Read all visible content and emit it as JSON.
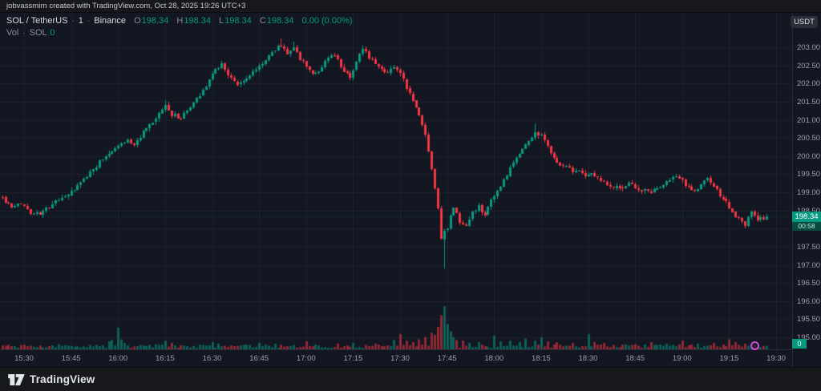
{
  "attribution": "jobvassmirn created with TradingView.com, Oct 28, 2025 19:26 UTC+3",
  "header": {
    "symbol": "SOL / TetherUS",
    "separator": "·",
    "interval": "1",
    "exchange": "Binance",
    "ohlc": {
      "o_label": "O",
      "o": "198.34",
      "h_label": "H",
      "h": "198.34",
      "l_label": "L",
      "l": "198.34",
      "c_label": "C",
      "c": "198.34",
      "change": "0.00 (0.00%)"
    },
    "volume_label": "Vol",
    "volume_symbol": "SOL",
    "volume_value": "0"
  },
  "axis_button": "USDT",
  "price_tag": {
    "price": "198.34",
    "countdown": "00:58"
  },
  "volume_tag": "0",
  "footer": {
    "logo_text": "TradingView"
  },
  "colors": {
    "up": "#089981",
    "down": "#f23645",
    "volume_up": "rgba(8,153,129,0.55)",
    "volume_down": "rgba(242,54,69,0.55)",
    "grid": "rgba(42,46,57,0.55)",
    "background": "#131722",
    "axis_text": "#9aa0aa",
    "tag_background": "#089981",
    "marker": "#c94fd8"
  },
  "chart_data": {
    "type": "candlestick",
    "symbol": "SOL/USDT",
    "exchange": "Binance",
    "interval_minutes": 1,
    "visible_range": [
      "15:23",
      "19:27"
    ],
    "x_ticks": [
      "15:30",
      "15:45",
      "16:00",
      "16:15",
      "16:30",
      "16:45",
      "17:00",
      "17:15",
      "17:30",
      "17:45",
      "18:00",
      "18:15",
      "18:30",
      "18:45",
      "19:00",
      "19:15",
      "19:30"
    ],
    "y_ticks": [
      203.0,
      202.5,
      202.0,
      201.5,
      201.0,
      200.5,
      200.0,
      199.5,
      199.0,
      198.5,
      198.0,
      197.5,
      197.0,
      196.5,
      196.0,
      195.5,
      195.0
    ],
    "ylim": [
      194.67,
      203.95
    ],
    "grid": true,
    "legend_position": "top-left",
    "last_price": 198.34,
    "session_high": 203.25,
    "crash_low": 196.9,
    "price_path": [
      [
        -7,
        198.85
      ],
      [
        -4,
        198.55
      ],
      [
        -1,
        198.7
      ],
      [
        2,
        198.45
      ],
      [
        5,
        198.4
      ],
      [
        8,
        198.6
      ],
      [
        12,
        198.85
      ],
      [
        15,
        199.0
      ],
      [
        18,
        199.25
      ],
      [
        21,
        199.55
      ],
      [
        24,
        199.85
      ],
      [
        27,
        200.1
      ],
      [
        30,
        200.3
      ],
      [
        33,
        200.45
      ],
      [
        35,
        200.3
      ],
      [
        38,
        200.65
      ],
      [
        41,
        200.9
      ],
      [
        43,
        201.15
      ],
      [
        45,
        201.4
      ],
      [
        47,
        201.15
      ],
      [
        50,
        201.05
      ],
      [
        53,
        201.35
      ],
      [
        56,
        201.7
      ],
      [
        59,
        202.1
      ],
      [
        61,
        202.4
      ],
      [
        63,
        202.55
      ],
      [
        65,
        202.25
      ],
      [
        68,
        201.95
      ],
      [
        71,
        202.15
      ],
      [
        74,
        202.4
      ],
      [
        77,
        202.65
      ],
      [
        80,
        202.95
      ],
      [
        82,
        203.05
      ],
      [
        84,
        202.85
      ],
      [
        86,
        203.0
      ],
      [
        88,
        202.7
      ],
      [
        90,
        202.45
      ],
      [
        93,
        202.25
      ],
      [
        96,
        202.6
      ],
      [
        99,
        202.8
      ],
      [
        101,
        202.45
      ],
      [
        104,
        202.2
      ],
      [
        106,
        202.6
      ],
      [
        108,
        202.95
      ],
      [
        110,
        202.75
      ],
      [
        113,
        202.5
      ],
      [
        116,
        202.3
      ],
      [
        118,
        202.5
      ],
      [
        120,
        202.25
      ],
      [
        122,
        201.9
      ],
      [
        124,
        201.55
      ],
      [
        126,
        201.1
      ],
      [
        128,
        200.6
      ],
      [
        129,
        200.1
      ],
      [
        130,
        199.6
      ],
      [
        131,
        199.1
      ],
      [
        132,
        198.5
      ],
      [
        133,
        197.7
      ],
      [
        134,
        197.3
      ],
      [
        135,
        197.95
      ],
      [
        136,
        198.35
      ],
      [
        137,
        198.55
      ],
      [
        139,
        198.2
      ],
      [
        141,
        198.05
      ],
      [
        143,
        198.45
      ],
      [
        145,
        198.6
      ],
      [
        147,
        198.35
      ],
      [
        149,
        198.75
      ],
      [
        151,
        199.0
      ],
      [
        153,
        199.3
      ],
      [
        155,
        199.65
      ],
      [
        157,
        199.95
      ],
      [
        159,
        200.2
      ],
      [
        161,
        200.4
      ],
      [
        163,
        200.65
      ],
      [
        165,
        200.55
      ],
      [
        167,
        200.3
      ],
      [
        169,
        199.95
      ],
      [
        171,
        199.7
      ],
      [
        173,
        199.75
      ],
      [
        175,
        199.55
      ],
      [
        177,
        199.65
      ],
      [
        179,
        199.45
      ],
      [
        181,
        199.55
      ],
      [
        183,
        199.4
      ],
      [
        185,
        199.3
      ],
      [
        187,
        199.2
      ],
      [
        190,
        199.1
      ],
      [
        193,
        199.25
      ],
      [
        196,
        199.1
      ],
      [
        199,
        199.0
      ],
      [
        202,
        199.1
      ],
      [
        205,
        199.3
      ],
      [
        208,
        199.45
      ],
      [
        210,
        199.3
      ],
      [
        212,
        199.15
      ],
      [
        214,
        199.0
      ],
      [
        216,
        199.2
      ],
      [
        218,
        199.4
      ],
      [
        220,
        199.15
      ],
      [
        222,
        198.9
      ],
      [
        224,
        198.7
      ],
      [
        226,
        198.45
      ],
      [
        228,
        198.25
      ],
      [
        230,
        198.1
      ],
      [
        232,
        198.45
      ],
      [
        234,
        198.25
      ],
      [
        236,
        198.3
      ],
      [
        237,
        198.34
      ]
    ],
    "volume_spikes": {
      "27": 1.1,
      "28": 1.3,
      "30": 3.0,
      "31": 1.4,
      "32": 0.9,
      "45": 1.2,
      "47": 0.9,
      "60": 1.0,
      "62": 0.8,
      "75": 0.9,
      "80": 0.8,
      "90": 1.1,
      "100": 0.8,
      "105": 0.9,
      "112": 0.8,
      "118": 1.3,
      "120": 2.1,
      "122": 1.2,
      "124": 1.0,
      "126": 1.4,
      "128": 1.7,
      "130": 2.3,
      "131": 2.0,
      "132": 3.1,
      "133": 4.7,
      "134": 6.0,
      "135": 3.5,
      "136": 2.5,
      "137": 1.7,
      "138": 1.3,
      "140": 1.2,
      "142": 0.9,
      "145": 1.0,
      "150": 1.9,
      "152": 1.1,
      "155": 1.2,
      "158": 1.0,
      "160": 1.5,
      "163": 1.2,
      "165": 1.7,
      "167": 1.1,
      "170": 1.0,
      "175": 0.9,
      "180": 2.1,
      "182": 1.0,
      "185": 0.9,
      "195": 0.7,
      "200": 1.0,
      "205": 0.8,
      "210": 1.2,
      "215": 0.8,
      "220": 0.9,
      "225": 1.4,
      "227": 1.0,
      "230": 0.8,
      "233": 0.7
    },
    "wick_overrides": {
      "45": 201.55,
      "82": 203.25,
      "86": 203.15,
      "108": 203.05,
      "163": 200.9
    },
    "crash": {
      "t": 134,
      "low": 196.9,
      "close": 197.95
    }
  }
}
